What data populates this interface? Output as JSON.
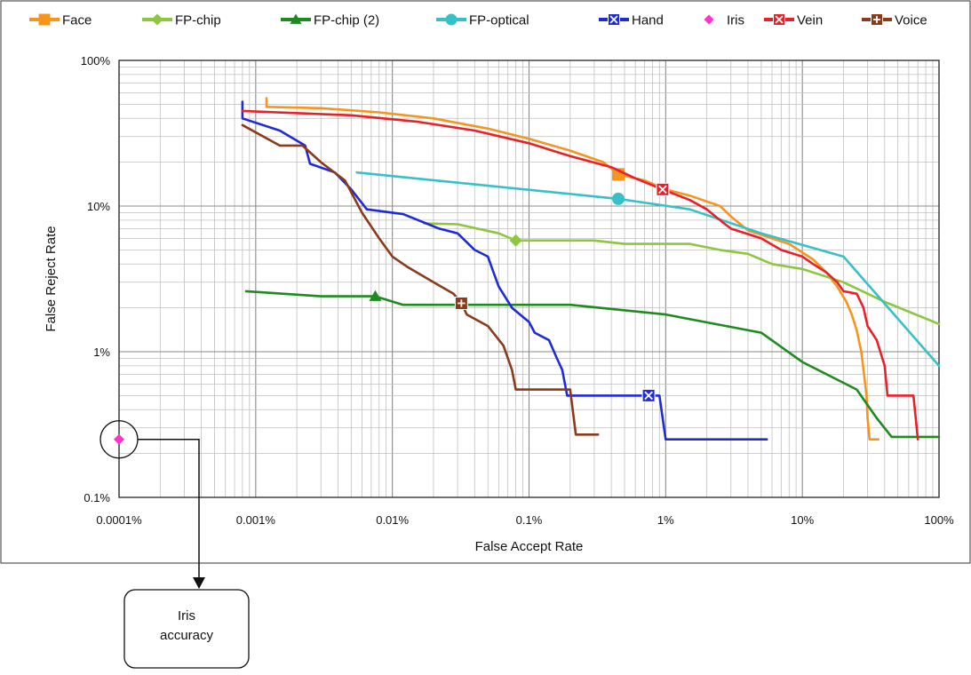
{
  "chart_data": {
    "type": "line",
    "xlabel": "False Accept Rate",
    "ylabel": "False Reject Rate",
    "x_scale": "log",
    "y_scale": "log",
    "xlim": [
      0.0001,
      100
    ],
    "ylim": [
      0.1,
      100
    ],
    "x_ticks": [
      {
        "value": 0.0001,
        "label": "0.0001%"
      },
      {
        "value": 0.001,
        "label": "0.001%"
      },
      {
        "value": 0.01,
        "label": "0.01%"
      },
      {
        "value": 0.1,
        "label": "0.1%"
      },
      {
        "value": 1,
        "label": "1%"
      },
      {
        "value": 10,
        "label": "10%"
      },
      {
        "value": 100,
        "label": "100%"
      }
    ],
    "y_ticks": [
      {
        "value": 0.1,
        "label": "0.1%"
      },
      {
        "value": 1,
        "label": "1%"
      },
      {
        "value": 10,
        "label": "10%"
      },
      {
        "value": 100,
        "label": "100%"
      }
    ],
    "grid": true,
    "legend_position": "top",
    "series": [
      {
        "name": "Face",
        "color": "#f7941d",
        "marker": "square",
        "marker_point": [
          0.45,
          16.5
        ],
        "points": [
          [
            0.0012,
            55
          ],
          [
            0.0012,
            48
          ],
          [
            0.003,
            47
          ],
          [
            0.008,
            44
          ],
          [
            0.02,
            40
          ],
          [
            0.05,
            34
          ],
          [
            0.1,
            29
          ],
          [
            0.2,
            24
          ],
          [
            0.35,
            20
          ],
          [
            0.45,
            16.5
          ],
          [
            0.7,
            15
          ],
          [
            1,
            13
          ],
          [
            1.5,
            11.8
          ],
          [
            2.5,
            10
          ],
          [
            3,
            8.5
          ],
          [
            4,
            6.8
          ],
          [
            6,
            6
          ],
          [
            8,
            5.5
          ],
          [
            12,
            4.3
          ],
          [
            15,
            3.5
          ],
          [
            18,
            2.8
          ],
          [
            21,
            2.2
          ],
          [
            23,
            1.8
          ],
          [
            25,
            1.4
          ],
          [
            27,
            1.0
          ],
          [
            28,
            0.75
          ],
          [
            29.5,
            0.5
          ],
          [
            30,
            0.35
          ],
          [
            31,
            0.25
          ],
          [
            36,
            0.25
          ]
        ]
      },
      {
        "name": "FP-chip",
        "color": "#8dc63f",
        "marker": "diamond",
        "marker_point": [
          0.08,
          5.8
        ],
        "points": [
          [
            0.017,
            7.6
          ],
          [
            0.03,
            7.5
          ],
          [
            0.06,
            6.5
          ],
          [
            0.08,
            5.8
          ],
          [
            0.3,
            5.8
          ],
          [
            0.5,
            5.5
          ],
          [
            1.5,
            5.5
          ],
          [
            2.5,
            5.0
          ],
          [
            4,
            4.7
          ],
          [
            6,
            4.0
          ],
          [
            10,
            3.7
          ],
          [
            20,
            3.0
          ],
          [
            40,
            2.2
          ],
          [
            100,
            1.55
          ]
        ]
      },
      {
        "name": "FP-chip (2)",
        "color": "#1f8a1f",
        "marker": "triangle",
        "marker_point": [
          0.0075,
          2.4
        ],
        "points": [
          [
            0.00085,
            2.6
          ],
          [
            0.003,
            2.4
          ],
          [
            0.0075,
            2.4
          ],
          [
            0.012,
            2.1
          ],
          [
            0.2,
            2.1
          ],
          [
            1,
            1.8
          ],
          [
            5,
            1.35
          ],
          [
            10,
            0.85
          ],
          [
            25,
            0.55
          ],
          [
            35,
            0.35
          ],
          [
            45,
            0.26
          ],
          [
            100,
            0.26
          ]
        ]
      },
      {
        "name": "FP-optical",
        "color": "#38c0c8",
        "marker": "circle",
        "marker_point": [
          0.45,
          11.2
        ],
        "points": [
          [
            0.0055,
            17
          ],
          [
            0.45,
            11.2
          ],
          [
            1.5,
            9.5
          ],
          [
            5,
            6.5
          ],
          [
            20,
            4.5
          ],
          [
            100,
            0.8
          ]
        ]
      },
      {
        "name": "Hand",
        "color": "#1e2bd8",
        "marker": "xbox",
        "marker_point": [
          0.75,
          0.5
        ],
        "points": [
          [
            0.0008,
            52
          ],
          [
            0.0008,
            40
          ],
          [
            0.0015,
            33
          ],
          [
            0.0023,
            26
          ],
          [
            0.0025,
            19.5
          ],
          [
            0.0038,
            17
          ],
          [
            0.005,
            13
          ],
          [
            0.0065,
            9.5
          ],
          [
            0.012,
            8.8
          ],
          [
            0.022,
            7
          ],
          [
            0.03,
            6.5
          ],
          [
            0.04,
            5
          ],
          [
            0.05,
            4.5
          ],
          [
            0.055,
            3.5
          ],
          [
            0.06,
            2.8
          ],
          [
            0.075,
            2.0
          ],
          [
            0.1,
            1.6
          ],
          [
            0.11,
            1.35
          ],
          [
            0.14,
            1.2
          ],
          [
            0.16,
            0.9
          ],
          [
            0.175,
            0.75
          ],
          [
            0.19,
            0.5
          ],
          [
            0.9,
            0.5
          ],
          [
            1.0,
            0.25
          ],
          [
            5.5,
            0.25
          ]
        ]
      },
      {
        "name": "Iris",
        "color": "#ff33cc",
        "marker": "diamond",
        "marker_point": [
          0.0001,
          0.25
        ],
        "points": [
          [
            0.0001,
            0.25
          ]
        ]
      },
      {
        "name": "Vein",
        "color": "#e8202a",
        "marker": "xbox",
        "marker_point": [
          0.95,
          13
        ],
        "points": [
          [
            0.0008,
            45
          ],
          [
            0.005,
            42
          ],
          [
            0.015,
            38
          ],
          [
            0.04,
            33
          ],
          [
            0.1,
            27
          ],
          [
            0.2,
            22
          ],
          [
            0.4,
            18.5
          ],
          [
            0.6,
            15.5
          ],
          [
            0.95,
            13
          ],
          [
            1.5,
            11
          ],
          [
            2,
            9.5
          ],
          [
            2.5,
            8
          ],
          [
            3,
            7
          ],
          [
            5,
            6
          ],
          [
            7,
            5
          ],
          [
            10,
            4.5
          ],
          [
            12,
            4
          ],
          [
            15,
            3.5
          ],
          [
            18,
            3.0
          ],
          [
            20,
            2.6
          ],
          [
            25,
            2.5
          ],
          [
            28,
            2.0
          ],
          [
            30,
            1.5
          ],
          [
            35,
            1.2
          ],
          [
            40,
            0.8
          ],
          [
            42,
            0.5
          ],
          [
            65,
            0.5
          ],
          [
            70,
            0.25
          ]
        ]
      },
      {
        "name": "Voice",
        "color": "#8b3a1a",
        "marker": "plusbox",
        "marker_point": [
          0.032,
          2.15
        ],
        "points": [
          [
            0.0008,
            36
          ],
          [
            0.0015,
            26
          ],
          [
            0.0022,
            26
          ],
          [
            0.003,
            20
          ],
          [
            0.0045,
            15
          ],
          [
            0.006,
            9
          ],
          [
            0.008,
            6
          ],
          [
            0.01,
            4.5
          ],
          [
            0.013,
            3.8
          ],
          [
            0.02,
            3.0
          ],
          [
            0.028,
            2.5
          ],
          [
            0.032,
            2.15
          ],
          [
            0.035,
            1.8
          ],
          [
            0.05,
            1.5
          ],
          [
            0.065,
            1.1
          ],
          [
            0.075,
            0.75
          ],
          [
            0.08,
            0.55
          ],
          [
            0.2,
            0.55
          ],
          [
            0.22,
            0.27
          ],
          [
            0.32,
            0.27
          ]
        ]
      }
    ],
    "callout": {
      "text_lines": [
        "Iris",
        "accuracy"
      ],
      "target_series": "Iris"
    }
  }
}
